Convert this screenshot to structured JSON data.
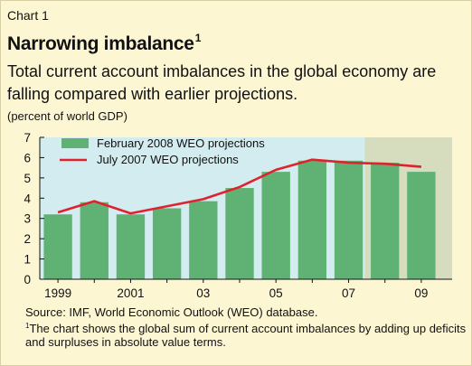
{
  "header": {
    "label": "Chart 1",
    "title": "Narrowing imbalance",
    "title_note_marker": "1",
    "subtitle": "Total current account imbalances in the global economy are falling compared with earlier projections.",
    "unit": "(percent of world GDP)"
  },
  "chart_data": {
    "type": "bar",
    "categories": [
      "1999",
      "2000",
      "2001",
      "2002",
      "2003",
      "2004",
      "2005",
      "2006",
      "2007",
      "2008",
      "2009"
    ],
    "x_tick_labels": [
      "1999",
      "",
      "2001",
      "",
      "03",
      "",
      "05",
      "",
      "07",
      "",
      "09"
    ],
    "series": [
      {
        "name": "February 2008 WEO projections",
        "type": "bar",
        "values": [
          3.2,
          3.8,
          3.2,
          3.5,
          3.85,
          4.5,
          5.3,
          5.85,
          5.85,
          5.75,
          5.3
        ]
      },
      {
        "name": "July 2007 WEO projections",
        "type": "line",
        "values": [
          3.3,
          3.85,
          3.25,
          3.6,
          3.95,
          4.55,
          5.4,
          5.9,
          5.75,
          5.7,
          5.55
        ]
      }
    ],
    "ylim": [
      0,
      7
    ],
    "y_ticks": [
      0,
      1,
      2,
      3,
      4,
      5,
      6,
      7
    ],
    "projection_start_category": "2008",
    "legend_position": "top-left",
    "colors": {
      "bar": "#5fb274",
      "line": "#e0212e",
      "plot_background": "#d2ecef",
      "projection_background": "#d6ddbf",
      "page_background": "#fdf6d3"
    }
  },
  "footer": {
    "source": "Source: IMF, World Economic Outlook (WEO) database.",
    "note_marker": "1",
    "note": "The chart shows the global sum of current account imbalances by adding up deficits and surpluses in absolute value terms."
  }
}
